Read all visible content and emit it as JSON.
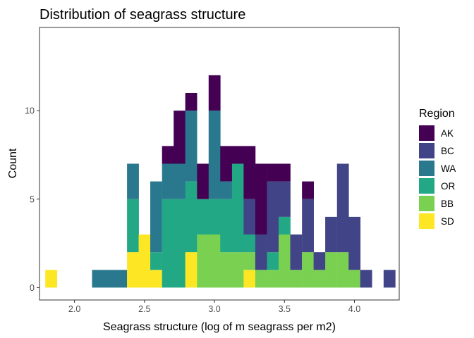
{
  "chart_data": {
    "type": "histogram",
    "title": "Distribution of seagrass structure",
    "xlabel": "Seagrass structure (log of m seagrass per m2)",
    "ylabel": "Count",
    "xlim": [
      1.75,
      4.32
    ],
    "ylim": [
      -0.7,
      14.7
    ],
    "x_ticks": [
      2.0,
      2.5,
      3.0,
      3.5,
      4.0
    ],
    "x_tick_labels": [
      "2.0",
      "2.5",
      "3.0",
      "3.5",
      "4.0"
    ],
    "y_ticks": [
      0,
      5,
      10
    ],
    "y_tick_labels": [
      "0",
      "5",
      "10"
    ],
    "bin_width": 0.0833,
    "stacked": true,
    "grid": false,
    "legend": {
      "title": "Region",
      "position": "right",
      "entries": [
        {
          "name": "AK",
          "color": "#440154"
        },
        {
          "name": "BC",
          "color": "#414487"
        },
        {
          "name": "WA",
          "color": "#2A788E"
        },
        {
          "name": "OR",
          "color": "#22A884"
        },
        {
          "name": "BB",
          "color": "#7AD151"
        },
        {
          "name": "SD",
          "color": "#FDE725"
        }
      ]
    },
    "bin_centers": [
      1.833,
      1.917,
      2.0,
      2.083,
      2.167,
      2.25,
      2.333,
      2.417,
      2.5,
      2.583,
      2.667,
      2.75,
      2.833,
      2.917,
      3.0,
      3.083,
      3.167,
      3.25,
      3.333,
      3.417,
      3.5,
      3.583,
      3.667,
      3.75,
      3.833,
      3.917,
      4.0,
      4.083,
      4.167,
      4.25
    ],
    "series": [
      {
        "name": "SD",
        "values": [
          1,
          0,
          0,
          0,
          0,
          0,
          0,
          2,
          3,
          1,
          0,
          0,
          2,
          0,
          0,
          0,
          0,
          1,
          0,
          0,
          0,
          0,
          0,
          0,
          0,
          0,
          0,
          0,
          0,
          0
        ]
      },
      {
        "name": "BB",
        "values": [
          0,
          0,
          0,
          0,
          0,
          0,
          0,
          0,
          0,
          0,
          0,
          0,
          0,
          3,
          3,
          2,
          2,
          1,
          1,
          1,
          3,
          1,
          2,
          1,
          2,
          2,
          1,
          0,
          0,
          0
        ]
      },
      {
        "name": "OR",
        "values": [
          0,
          0,
          0,
          0,
          0,
          0,
          0,
          3,
          0,
          1,
          5,
          5,
          4,
          2,
          2,
          3,
          5,
          1,
          0,
          1,
          1,
          0,
          0,
          0,
          0,
          0,
          0,
          0,
          0,
          0
        ]
      },
      {
        "name": "WA",
        "values": [
          0,
          0,
          0,
          0,
          1,
          1,
          1,
          2,
          0,
          4,
          2,
          2,
          4,
          0,
          5,
          1,
          0,
          0,
          0,
          0,
          0,
          0,
          0,
          0,
          0,
          0,
          0,
          0,
          0,
          0
        ]
      },
      {
        "name": "BC",
        "values": [
          0,
          0,
          0,
          0,
          0,
          0,
          0,
          0,
          0,
          0,
          0,
          0,
          0,
          0,
          0,
          0,
          0,
          2,
          2,
          4,
          2,
          2,
          3,
          1,
          2,
          5,
          3,
          1,
          0,
          1
        ]
      },
      {
        "name": "AK",
        "values": [
          0,
          0,
          0,
          0,
          0,
          0,
          0,
          0,
          0,
          0,
          1,
          3,
          1,
          2,
          2,
          2,
          1,
          3,
          4,
          1,
          1,
          0,
          1,
          0,
          0,
          0,
          0,
          0,
          0,
          0
        ]
      }
    ]
  }
}
